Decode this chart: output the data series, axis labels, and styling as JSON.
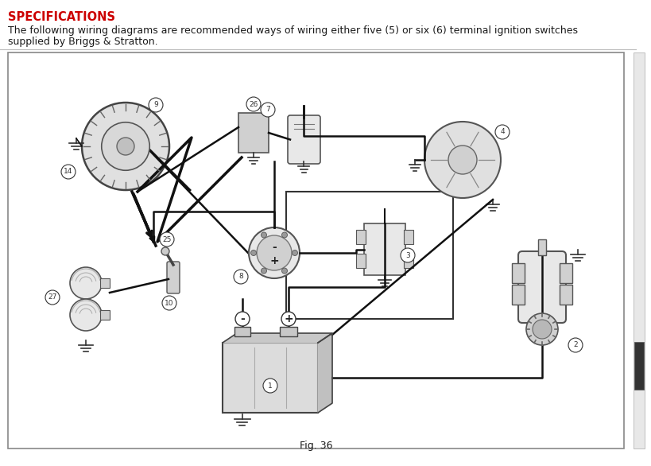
{
  "title": "SPECIFICATIONS",
  "subtitle_line1": "The following wiring diagrams are recommended ways of wiring either five (5) or six (6) terminal ignition switches",
  "subtitle_line2": "supplied by Briggs & Stratton.",
  "fig_label": "Fig. 36",
  "bg_color": "#ffffff",
  "title_color": "#cc0000",
  "text_color": "#1a1a1a",
  "diagram_border": "#888888",
  "wire_color": "#111111",
  "part_color": "#333333",
  "fill_light": "#e8e8e8",
  "fill_mid": "#d0d0d0",
  "fill_dark": "#b8b8b8",
  "scroll_bar_color": "#2a2a2a",
  "title_fontsize": 10.5,
  "subtitle_fontsize": 9.0,
  "fig_label_fontsize": 9.0
}
